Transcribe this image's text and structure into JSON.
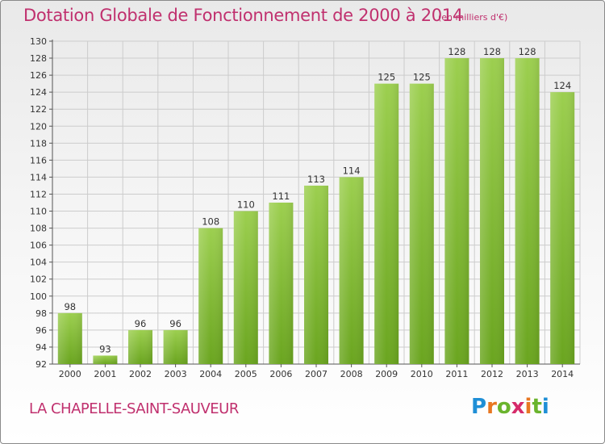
{
  "header": {
    "title": "Dotation Globale de Fonctionnement de 2000 à 2014",
    "subtitle": "(en milliers d'€)"
  },
  "footer": {
    "commune": "LA CHAPELLE-SAINT-SAUVEUR",
    "logo_text": "Proxiti",
    "logo_colors": [
      "#1f8fd6",
      "#e87722",
      "#6ab42d",
      "#d62b6a"
    ]
  },
  "chart_data": {
    "type": "bar",
    "title": "Dotation Globale de Fonctionnement de 2000 à 2014",
    "subtitle": "(en milliers d'€)",
    "xlabel": "",
    "ylabel": "",
    "categories": [
      "2000",
      "2001",
      "2002",
      "2003",
      "2004",
      "2005",
      "2006",
      "2007",
      "2008",
      "2009",
      "2010",
      "2011",
      "2012",
      "2013",
      "2014"
    ],
    "values": [
      98,
      93,
      96,
      96,
      108,
      110,
      111,
      113,
      114,
      125,
      125,
      128,
      128,
      128,
      124
    ],
    "ylim": [
      92,
      130
    ],
    "yticks": [
      92,
      94,
      96,
      98,
      100,
      102,
      104,
      106,
      108,
      110,
      112,
      114,
      116,
      118,
      120,
      122,
      124,
      126,
      128,
      130
    ],
    "grid": true,
    "bar_color_top": "#9ccf4f",
    "bar_color_bottom": "#6aa51f",
    "grid_color": "#cccccc",
    "text_color": "#c0306e"
  }
}
